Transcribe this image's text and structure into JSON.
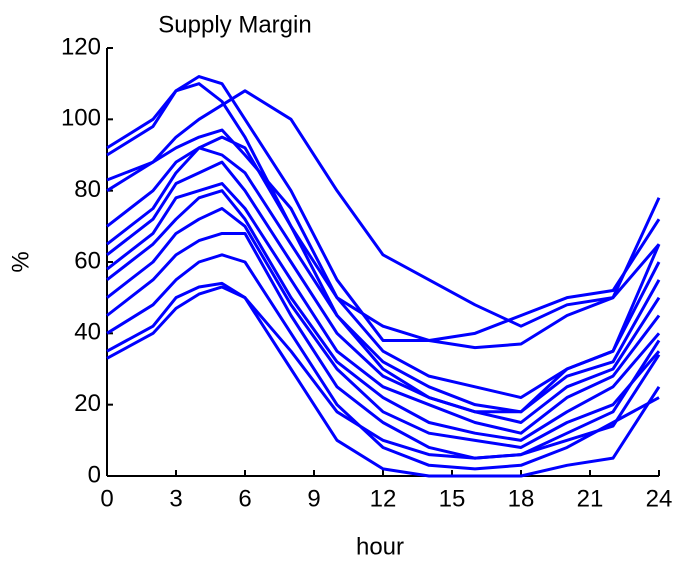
{
  "chart_data": {
    "type": "line",
    "title": "Supply Margin",
    "xlabel": "hour",
    "ylabel": "%",
    "x": [
      0,
      2,
      3,
      4,
      5,
      6,
      8,
      10,
      12,
      14,
      16,
      18,
      20,
      22,
      24
    ],
    "series": [
      {
        "color": "#0000ff",
        "values": [
          90,
          98,
          108,
          112,
          110,
          100,
          80,
          55,
          38,
          38,
          36,
          37,
          45,
          50,
          78
        ]
      },
      {
        "color": "#0000ff",
        "values": [
          92,
          100,
          108,
          110,
          105,
          95,
          70,
          50,
          42,
          38,
          40,
          45,
          50,
          52,
          72
        ]
      },
      {
        "color": "#0000ff",
        "values": [
          80,
          88,
          95,
          100,
          104,
          108,
          100,
          80,
          62,
          55,
          48,
          42,
          48,
          50,
          65
        ]
      },
      {
        "color": "#0000ff",
        "values": [
          83,
          88,
          92,
          95,
          97,
          90,
          75,
          50,
          35,
          28,
          25,
          22,
          30,
          35,
          60
        ]
      },
      {
        "color": "#0000ff",
        "values": [
          70,
          80,
          88,
          92,
          90,
          85,
          65,
          45,
          32,
          25,
          20,
          18,
          28,
          32,
          55
        ]
      },
      {
        "color": "#0000ff",
        "values": [
          62,
          72,
          82,
          85,
          88,
          80,
          60,
          40,
          28,
          22,
          18,
          15,
          25,
          30,
          50
        ]
      },
      {
        "color": "#0000ff",
        "values": [
          58,
          68,
          78,
          80,
          82,
          75,
          55,
          35,
          25,
          20,
          15,
          12,
          22,
          28,
          45
        ]
      },
      {
        "color": "#0000ff",
        "values": [
          55,
          65,
          72,
          78,
          80,
          72,
          50,
          32,
          22,
          15,
          12,
          10,
          18,
          25,
          40
        ]
      },
      {
        "color": "#0000ff",
        "values": [
          50,
          60,
          68,
          72,
          75,
          70,
          48,
          30,
          18,
          12,
          10,
          8,
          15,
          20,
          35
        ]
      },
      {
        "color": "#0000ff",
        "values": [
          45,
          55,
          62,
          66,
          68,
          68,
          45,
          25,
          15,
          8,
          5,
          6,
          12,
          18,
          38
        ]
      },
      {
        "color": "#0000ff",
        "values": [
          40,
          48,
          55,
          60,
          62,
          60,
          40,
          20,
          8,
          3,
          2,
          3,
          8,
          15,
          22
        ]
      },
      {
        "color": "#0000ff",
        "values": [
          35,
          42,
          50,
          53,
          54,
          50,
          30,
          10,
          2,
          0,
          0,
          0,
          3,
          5,
          25
        ]
      },
      {
        "color": "#0000ff",
        "values": [
          33,
          40,
          47,
          51,
          53,
          50,
          35,
          18,
          10,
          6,
          5,
          6,
          10,
          14,
          34
        ]
      },
      {
        "color": "#0000ff",
        "values": [
          65,
          75,
          85,
          92,
          95,
          92,
          70,
          45,
          30,
          22,
          18,
          18,
          30,
          35,
          65
        ]
      }
    ],
    "xlim": [
      0,
      24
    ],
    "xticks": [
      0,
      3,
      6,
      9,
      12,
      15,
      18,
      21,
      24
    ],
    "ylim": [
      0,
      120
    ],
    "yticks": [
      0,
      20,
      40,
      60,
      80,
      100,
      120
    ]
  }
}
